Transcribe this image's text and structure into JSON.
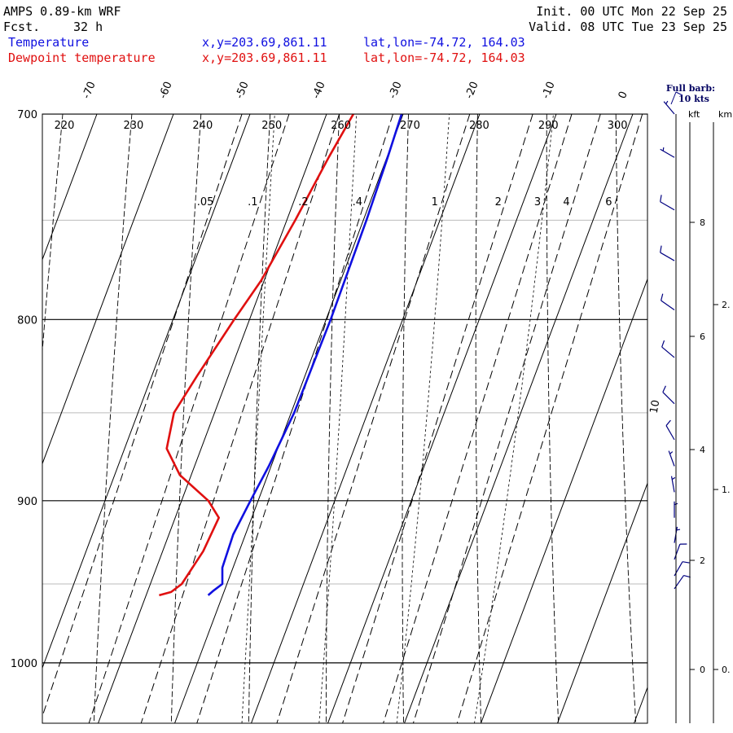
{
  "header": {
    "model": "AMPS 0.89-km WRF",
    "fcst_label": "Fcst.",
    "fcst_value": "32 h",
    "init": "Init. 00 UTC Mon 22 Sep 25",
    "valid": "Valid. 08 UTC Tue 23 Sep 25"
  },
  "legend": {
    "temperature": {
      "label": "Temperature",
      "xy": "x,y=203.69,861.11",
      "latlon": "lat,lon=-74.72, 164.03",
      "color": "#1010e0"
    },
    "dewpoint": {
      "label": "Dewpoint temperature",
      "xy": "x,y=203.69,861.11",
      "latlon": "lat,lon=-74.72, 164.03",
      "color": "#e01010"
    }
  },
  "barb_key": {
    "line1": "Full barb:",
    "line2": "10 kts"
  },
  "height_axis": {
    "kft_label": "kft",
    "km_label": "km"
  },
  "chart_data": {
    "type": "skew-t",
    "pressure_range_hpa": [
      700,
      1040
    ],
    "pressure_labels": [
      "700",
      "800",
      "900",
      "1000"
    ],
    "pressure_grid_hpa": [
      700,
      750,
      800,
      850,
      900,
      950,
      1000
    ],
    "temperature_labels": [
      "-70",
      "-60",
      "-50",
      "-40",
      "-30",
      "-20",
      "-10",
      "0"
    ],
    "theta_labels": [
      "220",
      "230",
      "240",
      "250",
      "260",
      "270",
      "280",
      "290",
      "300"
    ],
    "mixing_ratio_labels": [
      ".05",
      ".1",
      ".2",
      ".4",
      "1",
      "2",
      "3",
      "4",
      "6"
    ],
    "saturated_adiabat_label": "10",
    "kft_ticks": [
      "0",
      "2",
      "4",
      "6",
      "8"
    ],
    "km_ticks": [
      "0.",
      "1.",
      "2."
    ],
    "series": [
      {
        "name": "Temperature",
        "color": "#1010e0",
        "points": [
          {
            "p": 700,
            "t": -30.2
          },
          {
            "p": 720,
            "t": -29.9
          },
          {
            "p": 750,
            "t": -29.6
          },
          {
            "p": 800,
            "t": -29.4
          },
          {
            "p": 850,
            "t": -29.6
          },
          {
            "p": 880,
            "t": -30.3
          },
          {
            "p": 900,
            "t": -31.0
          },
          {
            "p": 920,
            "t": -31.6
          },
          {
            "p": 940,
            "t": -31.4
          },
          {
            "p": 950,
            "t": -30.6
          },
          {
            "p": 954,
            "t": -31.4
          },
          {
            "p": 957,
            "t": -31.9
          }
        ]
      },
      {
        "name": "Dewpoint temperature",
        "color": "#e01010",
        "points": [
          {
            "p": 700,
            "t": -36.5
          },
          {
            "p": 720,
            "t": -37.6
          },
          {
            "p": 750,
            "t": -38.9
          },
          {
            "p": 780,
            "t": -40.4
          },
          {
            "p": 800,
            "t": -42.0
          },
          {
            "p": 830,
            "t": -44.1
          },
          {
            "p": 850,
            "t": -45.3
          },
          {
            "p": 870,
            "t": -44.5
          },
          {
            "p": 885,
            "t": -41.5
          },
          {
            "p": 900,
            "t": -36.5
          },
          {
            "p": 910,
            "t": -34.3
          },
          {
            "p": 930,
            "t": -34.7
          },
          {
            "p": 950,
            "t": -35.9
          },
          {
            "p": 955,
            "t": -36.9
          },
          {
            "p": 957,
            "t": -38.3
          }
        ]
      }
    ],
    "wind_barbs": [
      {
        "p": 700,
        "dir_deg": 320,
        "speed_kt": 6
      },
      {
        "p": 720,
        "dir_deg": 300,
        "speed_kt": 7
      },
      {
        "p": 745,
        "dir_deg": 300,
        "speed_kt": 8
      },
      {
        "p": 770,
        "dir_deg": 300,
        "speed_kt": 9
      },
      {
        "p": 795,
        "dir_deg": 305,
        "speed_kt": 10
      },
      {
        "p": 820,
        "dir_deg": 310,
        "speed_kt": 10
      },
      {
        "p": 845,
        "dir_deg": 315,
        "speed_kt": 10
      },
      {
        "p": 865,
        "dir_deg": 330,
        "speed_kt": 8
      },
      {
        "p": 880,
        "dir_deg": 340,
        "speed_kt": 7
      },
      {
        "p": 895,
        "dir_deg": 350,
        "speed_kt": 6
      },
      {
        "p": 910,
        "dir_deg": 0,
        "speed_kt": 6
      },
      {
        "p": 925,
        "dir_deg": 10,
        "speed_kt": 7
      },
      {
        "p": 935,
        "dir_deg": 20,
        "speed_kt": 8
      },
      {
        "p": 945,
        "dir_deg": 30,
        "speed_kt": 9
      },
      {
        "p": 953,
        "dir_deg": 35,
        "speed_kt": 10
      }
    ]
  }
}
